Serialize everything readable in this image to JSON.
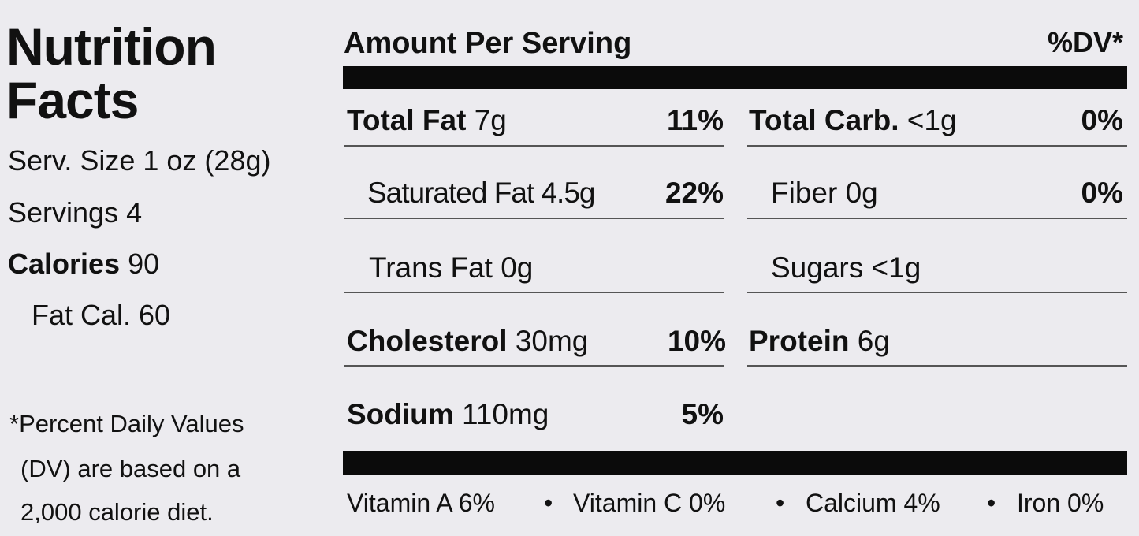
{
  "title_lines": [
    "Nutrition",
    "Facts"
  ],
  "serving": {
    "size": "Serv. Size 1 oz (28g)",
    "servings": "Servings 4",
    "calories_label": "Calories",
    "calories": "90",
    "fat_calories": "Fat Cal. 60"
  },
  "footnote": [
    "*Percent Daily Values",
    "(DV) are based on a",
    "2,000 calorie diet."
  ],
  "header": {
    "amount": "Amount Per Serving",
    "dv": "%DV*"
  },
  "left_rows": [
    {
      "name": "Total Fat",
      "amount": "7g",
      "dv": "11%"
    },
    {
      "name": "Saturated Fat",
      "amount": "4.5g",
      "dv": "22%"
    },
    {
      "name": "Trans Fat",
      "amount": "0g"
    },
    {
      "name": "Cholesterol",
      "amount": "30mg",
      "dv": "10%"
    },
    {
      "name": "Sodium",
      "amount": "110mg",
      "dv": "5%"
    }
  ],
  "right_rows": [
    {
      "name": "Total Carb.",
      "amount": "<1g",
      "dv": "0%"
    },
    {
      "name": "Fiber",
      "amount": "0g",
      "dv": "0%"
    },
    {
      "name": "Sugars",
      "amount": "<1g"
    },
    {
      "name": "Protein",
      "amount": "6g"
    }
  ],
  "vitamins": [
    "Vitamin A 6%",
    "Vitamin C 0%",
    "Calcium 4%",
    "Iron 0%"
  ]
}
